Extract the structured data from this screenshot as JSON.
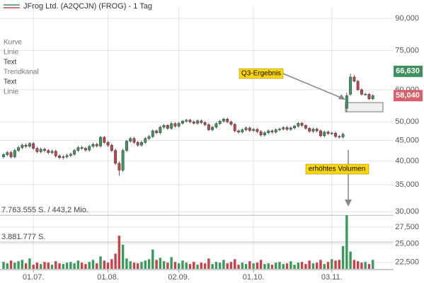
{
  "chart_data": {
    "type": "candlestick",
    "title": "JFrog Ltd. (A2QCJN) (FROG) - 1 Tag",
    "legend_items": [
      "Kurve",
      "Linie",
      "Text",
      "Trendkanal",
      "Text",
      "Linie"
    ],
    "log_scale": true,
    "grid": true,
    "up_color": "#3a9a5b",
    "down_color": "#c8414b",
    "categories": [
      null,
      null,
      null,
      null,
      null,
      null,
      null,
      null,
      "01.07.",
      null,
      null,
      null,
      null,
      null,
      null,
      null,
      null,
      null,
      null,
      null,
      null,
      null,
      null,
      null,
      null,
      null,
      null,
      null,
      "01.08.",
      null,
      null,
      null,
      null,
      null,
      null,
      null,
      null,
      null,
      null,
      null,
      null,
      null,
      null,
      null,
      null,
      null,
      null,
      "02.09.",
      null,
      null,
      null,
      null,
      null,
      null,
      null,
      null,
      null,
      null,
      null,
      null,
      null,
      null,
      null,
      null,
      null,
      null,
      null,
      "01.10.",
      null,
      null,
      null,
      null,
      null,
      null,
      null,
      null,
      null,
      null,
      null,
      null,
      null,
      null,
      null,
      null,
      null,
      null,
      null,
      null,
      "03.11.",
      null,
      null,
      null,
      null,
      null,
      null,
      null,
      null,
      null,
      null,
      null
    ],
    "open": [
      41000,
      41500,
      42000,
      41000,
      42500,
      43200,
      43800,
      43500,
      44200,
      43000,
      42200,
      42800,
      42500,
      42000,
      42300,
      41200,
      40800,
      41000,
      41300,
      41600,
      42500,
      43200,
      43000,
      42600,
      43500,
      44000,
      43600,
      45800,
      44500,
      43800,
      42500,
      39500,
      38000,
      42500,
      44800,
      45500,
      44500,
      43800,
      44500,
      45500,
      46000,
      47500,
      47000,
      48500,
      49000,
      48200,
      49500,
      48800,
      49600,
      50200,
      50500,
      50000,
      49600,
      50300,
      49800,
      49200,
      47800,
      48500,
      49500,
      50200,
      50800,
      50000,
      49300,
      47500,
      47200,
      47800,
      48300,
      47600,
      47900,
      47300,
      46400,
      47000,
      47500,
      47200,
      47800,
      48000,
      48400,
      47900,
      48300,
      48800,
      49600,
      49000,
      48200,
      47400,
      48000,
      47500,
      46200,
      47200,
      46800,
      46900,
      46000,
      45900,
      54000,
      58500,
      64500,
      63000,
      60000,
      58500,
      58500,
      57000
    ],
    "high": [
      41900,
      42400,
      42400,
      42900,
      43600,
      44200,
      44200,
      44600,
      44600,
      43400,
      43200,
      43200,
      42900,
      42700,
      42700,
      41600,
      41400,
      41700,
      42000,
      42900,
      43600,
      43600,
      43400,
      43900,
      44400,
      44400,
      46200,
      46200,
      44900,
      44200,
      42900,
      39900,
      42900,
      45200,
      45900,
      45900,
      44900,
      44900,
      45900,
      46400,
      47900,
      47900,
      48900,
      49400,
      49400,
      49900,
      49900,
      50000,
      50600,
      50900,
      50900,
      50400,
      50700,
      50700,
      50200,
      49600,
      48900,
      49900,
      50600,
      51200,
      51200,
      50400,
      49700,
      47900,
      48200,
      48700,
      48700,
      48300,
      48300,
      47700,
      47400,
      47900,
      47900,
      48200,
      48400,
      48800,
      48800,
      48700,
      49200,
      50000,
      50000,
      49400,
      48600,
      48400,
      48400,
      47900,
      47600,
      47600,
      47300,
      47300,
      46400,
      47000,
      59000,
      65800,
      65200,
      63400,
      60500,
      59000,
      58900,
      58500
    ],
    "low": [
      40600,
      41100,
      40600,
      40600,
      42100,
      42800,
      43100,
      43100,
      42600,
      41800,
      41800,
      42100,
      41600,
      41600,
      40800,
      40400,
      40400,
      40600,
      40900,
      41200,
      42100,
      42600,
      42200,
      42200,
      43100,
      43200,
      43200,
      44100,
      43400,
      42100,
      39100,
      36800,
      37600,
      42100,
      44400,
      44100,
      43400,
      43400,
      44100,
      45100,
      45600,
      46600,
      46600,
      48100,
      47800,
      47800,
      48400,
      48400,
      49200,
      49800,
      49600,
      49200,
      49200,
      49400,
      48800,
      47400,
      47400,
      48100,
      49100,
      49800,
      49600,
      48900,
      47100,
      46800,
      46800,
      47400,
      47200,
      47200,
      46900,
      46000,
      46000,
      46600,
      46800,
      46800,
      47400,
      47600,
      47500,
      47500,
      47900,
      48400,
      48600,
      47800,
      47000,
      47000,
      47100,
      45800,
      45800,
      46400,
      46400,
      45600,
      45500,
      45500,
      52900,
      58000,
      62600,
      59600,
      58100,
      58100,
      56600,
      56600
    ],
    "close": [
      41500,
      42000,
      41000,
      42500,
      43200,
      43800,
      43500,
      44200,
      43000,
      42200,
      42800,
      42500,
      42000,
      42300,
      41200,
      40800,
      41000,
      41300,
      41600,
      42500,
      43200,
      43000,
      42600,
      43500,
      44000,
      43600,
      45800,
      44500,
      43800,
      42500,
      39500,
      38000,
      42500,
      44800,
      45500,
      44500,
      43800,
      44500,
      45500,
      46000,
      47500,
      47000,
      48500,
      49000,
      48200,
      49500,
      48800,
      49600,
      50200,
      50500,
      50000,
      49600,
      50300,
      49800,
      49200,
      47800,
      48500,
      49500,
      50200,
      50800,
      50000,
      49300,
      47500,
      47200,
      47800,
      48300,
      47600,
      47900,
      47300,
      46400,
      47000,
      47500,
      47200,
      47800,
      48000,
      48400,
      47900,
      48300,
      48800,
      49600,
      49000,
      48200,
      47400,
      48000,
      47500,
      46200,
      47200,
      46800,
      46900,
      46000,
      45900,
      46600,
      58000,
      64500,
      63000,
      60000,
      58500,
      58500,
      57000,
      58040
    ],
    "volume": [
      1000000,
      800000,
      1200000,
      900000,
      1100000,
      1300000,
      800000,
      1500000,
      600000,
      900000,
      700000,
      1000000,
      900000,
      600000,
      1100000,
      800000,
      700000,
      900000,
      1000000,
      800000,
      1200000,
      900000,
      700000,
      1000000,
      1300000,
      800000,
      1800000,
      1200000,
      900000,
      1400000,
      2200000,
      4800000,
      3500000,
      1500000,
      1100000,
      900000,
      800000,
      1000000,
      1200000,
      1400000,
      2800000,
      1300000,
      1600000,
      1100000,
      900000,
      1700000,
      1000000,
      800000,
      1200000,
      900000,
      700000,
      1000000,
      600000,
      900000,
      800000,
      1500000,
      700000,
      1000000,
      900000,
      1300000,
      800000,
      1000000,
      1400000,
      600000,
      900000,
      700000,
      1100000,
      800000,
      900000,
      1300000,
      700000,
      800000,
      600000,
      900000,
      1000000,
      700000,
      800000,
      1100000,
      600000,
      900000,
      1000000,
      700000,
      1200000,
      800000,
      900000,
      1300000,
      700000,
      1000000,
      1400000,
      1200000,
      1300000,
      3300000,
      7763555,
      2500000,
      1300000,
      1100000,
      900000,
      1000000,
      700000,
      1300000
    ],
    "ylim": [
      21000,
      96000
    ],
    "yticks": [
      {
        "value": 22500,
        "label": "22,500"
      },
      {
        "value": 25000,
        "label": "25,000"
      },
      {
        "value": 27500,
        "label": "27,500"
      },
      {
        "value": 30000,
        "label": "30,000"
      },
      {
        "value": 35000,
        "label": "35,000"
      },
      {
        "value": 40000,
        "label": "40,000"
      },
      {
        "value": 45000,
        "label": "45,000"
      },
      {
        "value": 50000,
        "label": "50,000"
      },
      {
        "value": 60000,
        "label": "60,000"
      },
      {
        "value": 75000,
        "label": "75,000"
      },
      {
        "value": 90000,
        "label": "90,000"
      }
    ],
    "vlim": [
      0,
      8500000
    ],
    "volume_lines": [
      {
        "value": 7763555,
        "label": "7.763.555 S. / 443,2 Mio."
      },
      {
        "value": 3881777,
        "label": "3.881.777 S."
      }
    ],
    "price_markers": [
      {
        "value": 66630,
        "label": "66,630",
        "color": "#3d8f5e"
      },
      {
        "value": 58040,
        "label": "58,040",
        "color": "#d9606a"
      }
    ],
    "annotations": [
      "Q3-Ergebnis",
      "erhöhtes Volumen"
    ]
  }
}
